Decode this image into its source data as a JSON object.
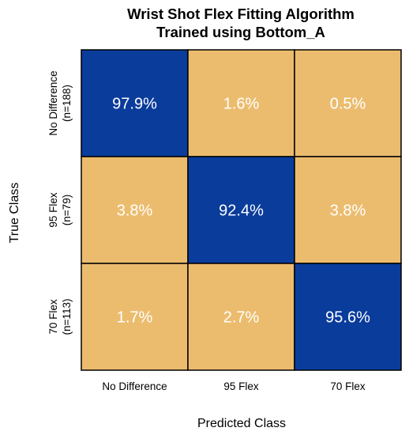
{
  "chart_data": {
    "type": "heatmap",
    "title": "Wrist Shot Flex Fitting Algorithm",
    "subtitle": "Trained using Bottom_A",
    "xlabel": "Predicted Class",
    "ylabel": "True Class",
    "x_categories": [
      "No Difference",
      "95 Flex",
      "70 Flex"
    ],
    "y_categories": [
      {
        "name": "No Difference",
        "count": "(n=188)"
      },
      {
        "name": "95 Flex",
        "count": "(n=79)"
      },
      {
        "name": "70 Flex",
        "count": "(n=113)"
      }
    ],
    "values": [
      [
        97.9,
        1.6,
        0.5
      ],
      [
        3.8,
        92.4,
        3.8
      ],
      [
        1.7,
        2.7,
        95.6
      ]
    ],
    "value_labels": [
      [
        "97.9%",
        "1.6%",
        "0.5%"
      ],
      [
        "3.8%",
        "92.4%",
        "3.8%"
      ],
      [
        "1.7%",
        "2.7%",
        "95.6%"
      ]
    ],
    "colors": {
      "diagonal": "#0a3c9c",
      "off_diagonal": "#ecbc6e",
      "cell_text": "#ffffff",
      "grid_line": "#000000"
    }
  }
}
